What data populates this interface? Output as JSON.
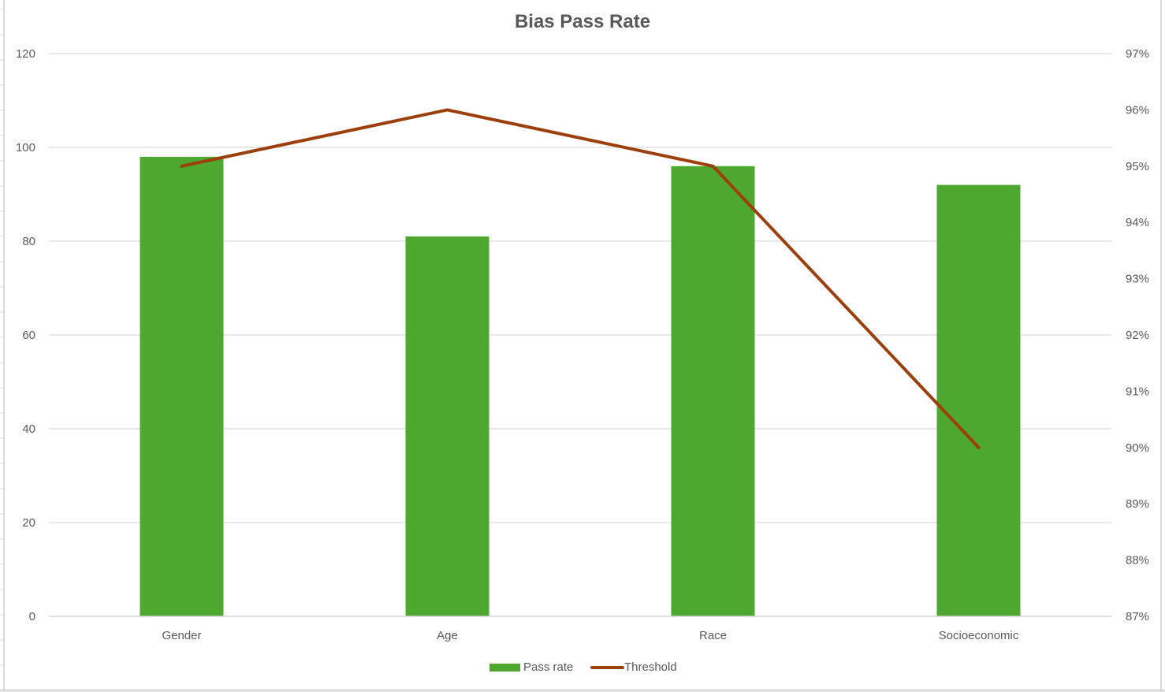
{
  "chart_data": {
    "type": "bar",
    "title": "Bias Pass Rate",
    "categories": [
      "Gender",
      "Age",
      "Race",
      "Socioeconomic"
    ],
    "series": [
      {
        "name": "Pass rate",
        "type": "bar",
        "axis": "left",
        "values": [
          98,
          81,
          96,
          92
        ],
        "color": "#4ea72e"
      },
      {
        "name": "Threshold",
        "type": "line",
        "axis": "right",
        "values": [
          0.95,
          0.96,
          0.95,
          0.9
        ],
        "color": "#9c3f0c"
      }
    ],
    "ylim": [
      0,
      120
    ],
    "yticks": [
      "0",
      "20",
      "40",
      "60",
      "80",
      "100",
      "120"
    ],
    "y2lim": [
      0.87,
      0.97
    ],
    "y2ticks": [
      "87%",
      "88%",
      "89%",
      "90%",
      "91%",
      "92%",
      "93%",
      "94%",
      "95%",
      "96%",
      "97%"
    ],
    "grid": true,
    "legend": "bottom"
  }
}
